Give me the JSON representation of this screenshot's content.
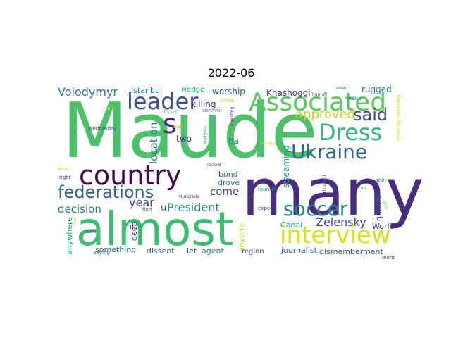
{
  "chart_data": {
    "type": "wordcloud",
    "title": "2022-06",
    "words": [
      {
        "text": "Maude",
        "color": "#4cc06a"
      },
      {
        "text": "many",
        "color": "#472d7b"
      },
      {
        "text": "almost",
        "color": "#3fbc73"
      },
      {
        "text": "country",
        "color": "#440154"
      },
      {
        "text": "Associated",
        "color": "#5ec962"
      },
      {
        "text": "interview",
        "color": "#d2e21b"
      },
      {
        "text": "Dress",
        "color": "#35b779"
      },
      {
        "text": "Ukraine",
        "color": "#31688e"
      },
      {
        "text": "leader",
        "color": "#3b528b"
      },
      {
        "text": "federations",
        "color": "#33638d"
      },
      {
        "text": "soccer",
        "color": "#23898e"
      },
      {
        "text": "said",
        "color": "#3e4a89"
      },
      {
        "text": "s",
        "color": "#482475"
      },
      {
        "text": "approved",
        "color": "#b5de2b"
      },
      {
        "text": "Volodymyr",
        "color": "#2d708e"
      },
      {
        "text": "decision",
        "color": "#2a788e"
      },
      {
        "text": "President",
        "color": "#21918c"
      },
      {
        "text": "Zelensky",
        "color": "#3e4989"
      },
      {
        "text": "year",
        "color": "#433e85"
      },
      {
        "text": "location",
        "color": "#2c728e"
      },
      {
        "text": "come",
        "color": "#414487"
      },
      {
        "text": "streaming",
        "color": "#1f9e89"
      },
      {
        "text": "killing",
        "color": "#443983"
      },
      {
        "text": "worship",
        "color": "#38588c"
      },
      {
        "text": "Khashoggi",
        "color": "#46337e"
      },
      {
        "text": "rugged",
        "color": "#26828e"
      },
      {
        "text": "Istanbul",
        "color": "#2a788e"
      },
      {
        "text": "wedge",
        "color": "#29af7f"
      },
      {
        "text": "two",
        "color": "#453781"
      },
      {
        "text": "ha",
        "color": "#287c8e"
      },
      {
        "text": "bond",
        "color": "#3b528b"
      },
      {
        "text": "drove",
        "color": "#2d708e"
      },
      {
        "text": "u",
        "color": "#355f8d"
      },
      {
        "text": "quaker",
        "color": "#39568c"
      },
      {
        "text": "World",
        "color": "#443a83"
      },
      {
        "text": "Canal",
        "color": "#25ab82"
      },
      {
        "text": "hit",
        "color": "#472a7a"
      },
      {
        "text": "deep",
        "color": "#3f4788"
      },
      {
        "text": "anyone",
        "color": "#addc30"
      },
      {
        "text": "anywhere",
        "color": "#1fa188"
      },
      {
        "text": "something",
        "color": "#2c728e"
      },
      {
        "text": "dissent",
        "color": "#34618d"
      },
      {
        "text": "let",
        "color": "#3b528b"
      },
      {
        "text": "agent",
        "color": "#2a788e"
      },
      {
        "text": "region",
        "color": "#46327e"
      },
      {
        "text": "journalist",
        "color": "#31688e"
      },
      {
        "text": "dismemberment",
        "color": "#3b528b"
      },
      {
        "text": "blunt",
        "color": "#3e4a89"
      },
      {
        "text": "official",
        "color": "#3fbc73"
      },
      {
        "text": "survivor",
        "color": "#2a788e"
      },
      {
        "text": "Wednesday",
        "color": "#443983"
      },
      {
        "text": "killed",
        "color": "#9fda3a"
      },
      {
        "text": "paris",
        "color": "#e5e419"
      },
      {
        "text": "start",
        "color": "#addc30"
      },
      {
        "text": "human",
        "color": "#34618d"
      },
      {
        "text": "event",
        "color": "#3b528b"
      },
      {
        "text": "investing",
        "color": "#46327e"
      },
      {
        "text": "business",
        "color": "#2a788e"
      },
      {
        "text": "missing",
        "color": "#c2df23"
      },
      {
        "text": "record",
        "color": "#453781"
      },
      {
        "text": "Arabia",
        "color": "#2a788e"
      },
      {
        "text": "sporting yearslong",
        "color": "#d8e219"
      },
      {
        "text": "drive",
        "color": "#9fda3a"
      },
      {
        "text": "right",
        "color": "#443983"
      },
      {
        "text": "Hundreds",
        "color": "#482475"
      },
      {
        "text": "tourism",
        "color": "#1fa188"
      },
      {
        "text": "criticism",
        "color": "#3b528b"
      },
      {
        "text": "spot",
        "color": "#287c8e"
      },
      {
        "text": "hot",
        "color": "#5ec962"
      },
      {
        "text": "expect",
        "color": "#3e4a89"
      },
      {
        "text": "golf",
        "color": "#7ad151"
      },
      {
        "text": "find",
        "color": "#2a788e"
      },
      {
        "text": "tour",
        "color": "#addc30"
      },
      {
        "text": "turn",
        "color": "#443983"
      },
      {
        "text": "saying",
        "color": "#355f8d"
      }
    ]
  }
}
